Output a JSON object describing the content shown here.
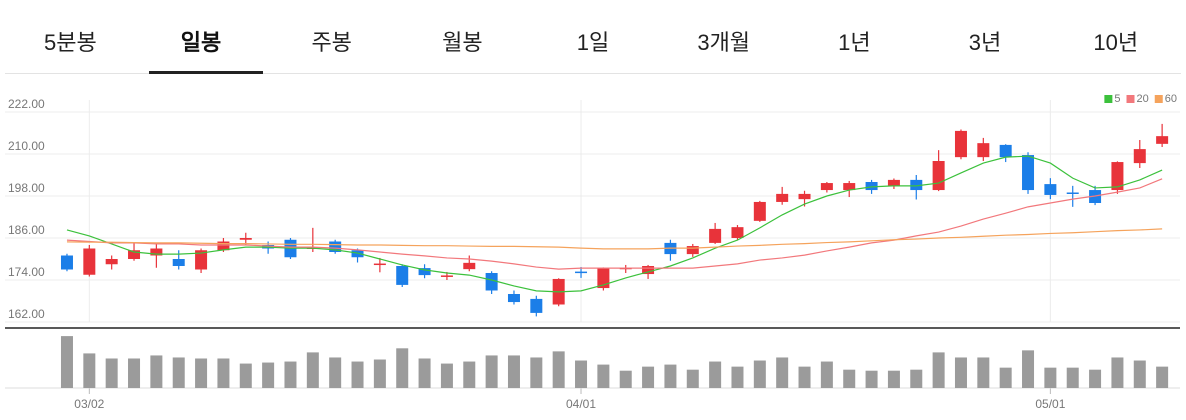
{
  "tabs": {
    "items": [
      "5분봉",
      "일봉",
      "주봉",
      "월봉",
      "1일",
      "3개월",
      "1년",
      "3년",
      "10년"
    ],
    "selected": 1
  },
  "chart_data": [
    {
      "type": "candlestick",
      "categories": [
        null,
        "03/02",
        null,
        null,
        null,
        null,
        null,
        null,
        null,
        null,
        null,
        null,
        null,
        null,
        null,
        null,
        null,
        null,
        null,
        null,
        null,
        null,
        null,
        "04/01",
        null,
        null,
        null,
        null,
        null,
        null,
        null,
        null,
        null,
        null,
        null,
        null,
        null,
        null,
        null,
        null,
        null,
        null,
        null,
        null,
        "05/01",
        null,
        null,
        null,
        null,
        null
      ],
      "open": [
        181,
        175.5,
        178.5,
        180,
        181,
        180,
        177,
        182.5,
        185.5,
        184,
        185.5,
        183,
        185,
        182.5,
        178.5,
        178,
        177.4,
        175.1,
        177.1,
        176,
        170,
        168.6,
        167,
        176.4,
        171.7,
        177.3,
        175.7,
        184.6,
        181.4,
        184.6,
        186,
        190.9,
        196.3,
        197.1,
        199.7,
        199.7,
        202,
        200.9,
        202.6,
        199.7,
        209.1,
        209.1,
        212.6,
        209.7,
        201.4,
        199,
        199.7,
        199.7,
        207.4,
        212.9
      ],
      "high": [
        181.5,
        184,
        181,
        184.5,
        184.5,
        182.5,
        183,
        186,
        187.5,
        185,
        186,
        188.9,
        185.5,
        183,
        180.3,
        178.5,
        178.5,
        176.3,
        181,
        176.5,
        171,
        169.5,
        174.5,
        177.7,
        177.6,
        178.3,
        178.3,
        185.5,
        184.3,
        190.3,
        189.7,
        196.6,
        200.6,
        199.5,
        202,
        202.3,
        202.6,
        203,
        204,
        211.1,
        217,
        214.6,
        212.8,
        210.5,
        203.1,
        200.9,
        200.9,
        207.9,
        214,
        218.6
      ],
      "low": [
        176.5,
        175,
        177,
        179.5,
        177.5,
        177,
        176,
        182,
        184,
        181.5,
        180,
        182,
        181.5,
        179,
        176.2,
        172,
        174.5,
        174,
        176.5,
        170,
        167,
        163.6,
        166.5,
        174.6,
        171,
        176,
        174.3,
        179.5,
        180.6,
        184.3,
        185.5,
        190.6,
        195.5,
        195,
        199,
        197.7,
        198.6,
        200,
        197,
        199.4,
        208.5,
        208,
        207.7,
        198.6,
        197.1,
        194.9,
        195.4,
        198.6,
        206,
        212
      ],
      "close": [
        177,
        183,
        180,
        182.5,
        183,
        178,
        182.5,
        185,
        186,
        183,
        180.5,
        183.3,
        182,
        180.5,
        178.7,
        172.6,
        175.4,
        175.3,
        178.9,
        171,
        167.7,
        164.6,
        174.3,
        176.3,
        177.4,
        177.5,
        178,
        181.4,
        183.7,
        188.6,
        189.1,
        196.3,
        198.6,
        198.6,
        201.7,
        201.7,
        199.7,
        202.6,
        199.7,
        208,
        216.6,
        213.1,
        209.1,
        199.7,
        198.3,
        198.8,
        196,
        207.7,
        211.4,
        215.1
      ],
      "up_color": "#e8333a",
      "down_color": "#1b7ee8",
      "series": [
        {
          "name": "5",
          "color": "#3cc13c",
          "values": [
            188.3,
            186.6,
            184.3,
            182,
            181.4,
            181.4,
            181.7,
            182.6,
            183.4,
            183.4,
            183.1,
            183.1,
            182.6,
            181.7,
            180,
            178.3,
            176.9,
            176,
            175.4,
            174,
            172.3,
            170.9,
            170.6,
            170.9,
            172.6,
            174.6,
            176.3,
            178,
            180.3,
            183.1,
            185.4,
            188.9,
            192.6,
            195.7,
            198,
            199.7,
            200.6,
            200.9,
            200.9,
            201.7,
            204.6,
            207.4,
            209.1,
            209.4,
            207.4,
            203.1,
            200.3,
            200.6,
            202.6,
            205.4
          ]
        },
        {
          "name": "20",
          "color": "#f2787c",
          "values": [
            185.4,
            185,
            184.6,
            184.6,
            184.3,
            184.3,
            184,
            184,
            184,
            183.7,
            183.4,
            183.4,
            183.1,
            182.6,
            182,
            181.4,
            180.9,
            180.3,
            180,
            179.4,
            178.6,
            177.7,
            177.1,
            177.4,
            177.4,
            177.4,
            177.4,
            177.4,
            177.4,
            178,
            178.6,
            179.7,
            180.3,
            181.1,
            182.3,
            183.4,
            184.6,
            185.4,
            186.6,
            187.7,
            189.4,
            191.4,
            193.1,
            194.9,
            196,
            197.1,
            198,
            199.1,
            200.3,
            202.9
          ]
        },
        {
          "name": "60",
          "color": "#f5a35c",
          "values": [
            184.9,
            184.8,
            184.8,
            184.7,
            184.6,
            184.6,
            184.5,
            184.4,
            184.4,
            184.3,
            184.2,
            184.2,
            184.1,
            184,
            184,
            183.9,
            183.8,
            183.8,
            183.7,
            183.6,
            183.6,
            183.5,
            183.4,
            183.1,
            182.9,
            182.9,
            182.9,
            183.1,
            183.1,
            183.4,
            183.7,
            183.9,
            184.2,
            184.4,
            184.7,
            184.9,
            185.2,
            185.5,
            185.7,
            186,
            186.2,
            186.5,
            186.8,
            187,
            187.3,
            187.5,
            187.8,
            188.1,
            188.3,
            188.6
          ]
        }
      ],
      "ylim": [
        162,
        222
      ],
      "yticks": [
        {
          "value": 162,
          "label": "162.00"
        },
        {
          "value": 174,
          "label": "174.00"
        },
        {
          "value": 186,
          "label": "186.00"
        },
        {
          "value": 198,
          "label": "198.00"
        },
        {
          "value": 210,
          "label": "210.00"
        },
        {
          "value": 222,
          "label": "222.00"
        }
      ],
      "grid": true,
      "legend": "top-right"
    },
    {
      "type": "bar",
      "color": "#9b9b9b",
      "ylim": [
        0,
        57
      ],
      "values": [
        51,
        34,
        29,
        29,
        32,
        30,
        29,
        29,
        24,
        25,
        26,
        35,
        30,
        26,
        28,
        39,
        29,
        24,
        26,
        32,
        32,
        30,
        36,
        27,
        23,
        17,
        21,
        23,
        18,
        26,
        21,
        27,
        30,
        21,
        26,
        18,
        17,
        17,
        18,
        35,
        30,
        30,
        20,
        37,
        20,
        20,
        18,
        30,
        27,
        21
      ]
    }
  ]
}
